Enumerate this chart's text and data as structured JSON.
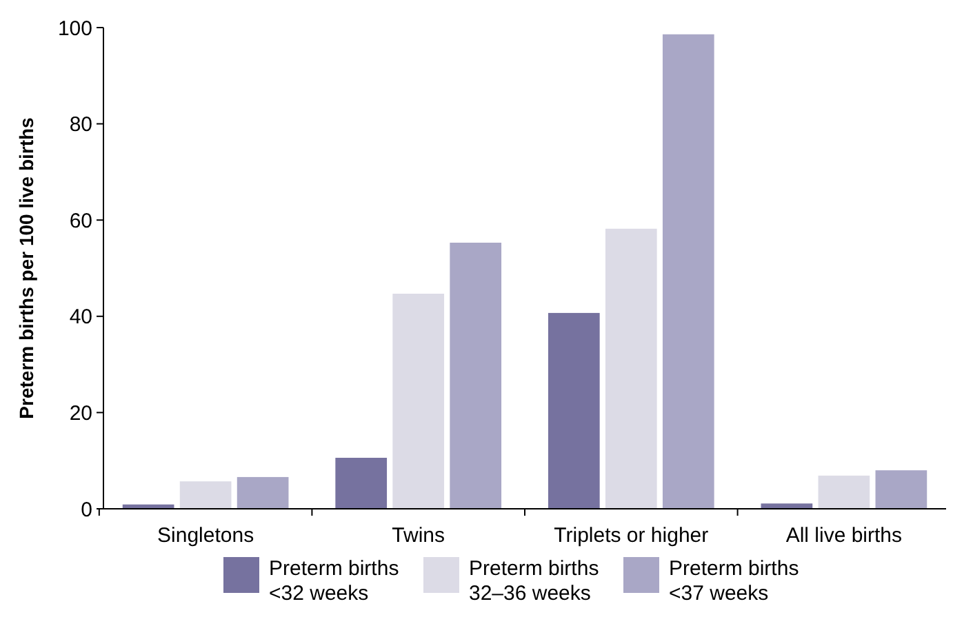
{
  "chart_data": {
    "type": "bar",
    "ylabel": "Preterm births per 100 live births",
    "categories": [
      "Singletons",
      "Twins",
      "Triplets or higher",
      "All live births"
    ],
    "series": [
      {
        "name": "Preterm births\n<32 weeks",
        "color": "#76729f",
        "values": [
          0.9,
          10.6,
          40.7,
          1.1
        ]
      },
      {
        "name": "Preterm births\n32–36 weeks",
        "color": "#dcdbe6",
        "values": [
          5.7,
          44.7,
          58.2,
          6.9
        ]
      },
      {
        "name": "Preterm births\n<37 weeks",
        "color": "#a9a7c6",
        "values": [
          6.6,
          55.3,
          98.6,
          8.0
        ]
      }
    ],
    "ylim": [
      0,
      100
    ],
    "yticks": [
      0,
      20,
      40,
      60,
      80,
      100
    ],
    "grid": false,
    "legend": "bottom"
  }
}
